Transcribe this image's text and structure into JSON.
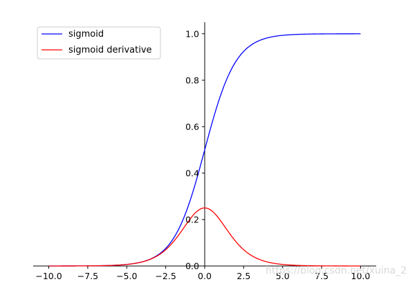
{
  "chart_data": {
    "type": "line",
    "title": "",
    "xlabel": "",
    "ylabel": "",
    "xlim": [
      -11,
      11
    ],
    "ylim": [
      0,
      1.05
    ],
    "x_ticks": [
      -10.0,
      -7.5,
      -5.0,
      -2.5,
      0.0,
      2.5,
      5.0,
      7.5,
      10.0
    ],
    "x_tick_labels": [
      "−10.0",
      "−7.5",
      "−5.0",
      "−2.5",
      "0.0",
      "2.5",
      "5.0",
      "7.5",
      "10.0"
    ],
    "y_ticks": [
      0.0,
      0.2,
      0.4,
      0.6,
      0.8,
      1.0
    ],
    "y_tick_labels": [
      "0.0",
      "0.2",
      "0.4",
      "0.6",
      "0.8",
      "1.0"
    ],
    "grid": false,
    "legend_position": "top-left",
    "spines": "centered at origin",
    "x": [
      -10,
      -9,
      -8,
      -7,
      -6,
      -5,
      -4,
      -3,
      -2.5,
      -2,
      -1.5,
      -1,
      -0.5,
      0,
      0.5,
      1,
      1.5,
      2,
      2.5,
      3,
      4,
      5,
      6,
      7,
      8,
      9,
      10
    ],
    "series": [
      {
        "name": "sigmoid",
        "color": "#0000ff",
        "values": [
          0.0,
          0.0001,
          0.0003,
          0.0009,
          0.0025,
          0.0067,
          0.018,
          0.0474,
          0.0759,
          0.1192,
          0.1824,
          0.2689,
          0.3775,
          0.5,
          0.6225,
          0.7311,
          0.8176,
          0.8808,
          0.9241,
          0.9526,
          0.982,
          0.9933,
          0.9975,
          0.9991,
          0.9997,
          0.9999,
          1.0
        ]
      },
      {
        "name": "sigmoid derivative",
        "color": "#ff0000",
        "values": [
          0.0,
          0.0001,
          0.0003,
          0.0009,
          0.0025,
          0.0066,
          0.0177,
          0.0452,
          0.0701,
          0.105,
          0.1491,
          0.1966,
          0.235,
          0.25,
          0.235,
          0.1966,
          0.1491,
          0.105,
          0.0701,
          0.0452,
          0.0177,
          0.0066,
          0.0025,
          0.0009,
          0.0003,
          0.0001,
          0.0
        ]
      }
    ],
    "watermark": "https://blog.csdn.net/xuina_2"
  }
}
